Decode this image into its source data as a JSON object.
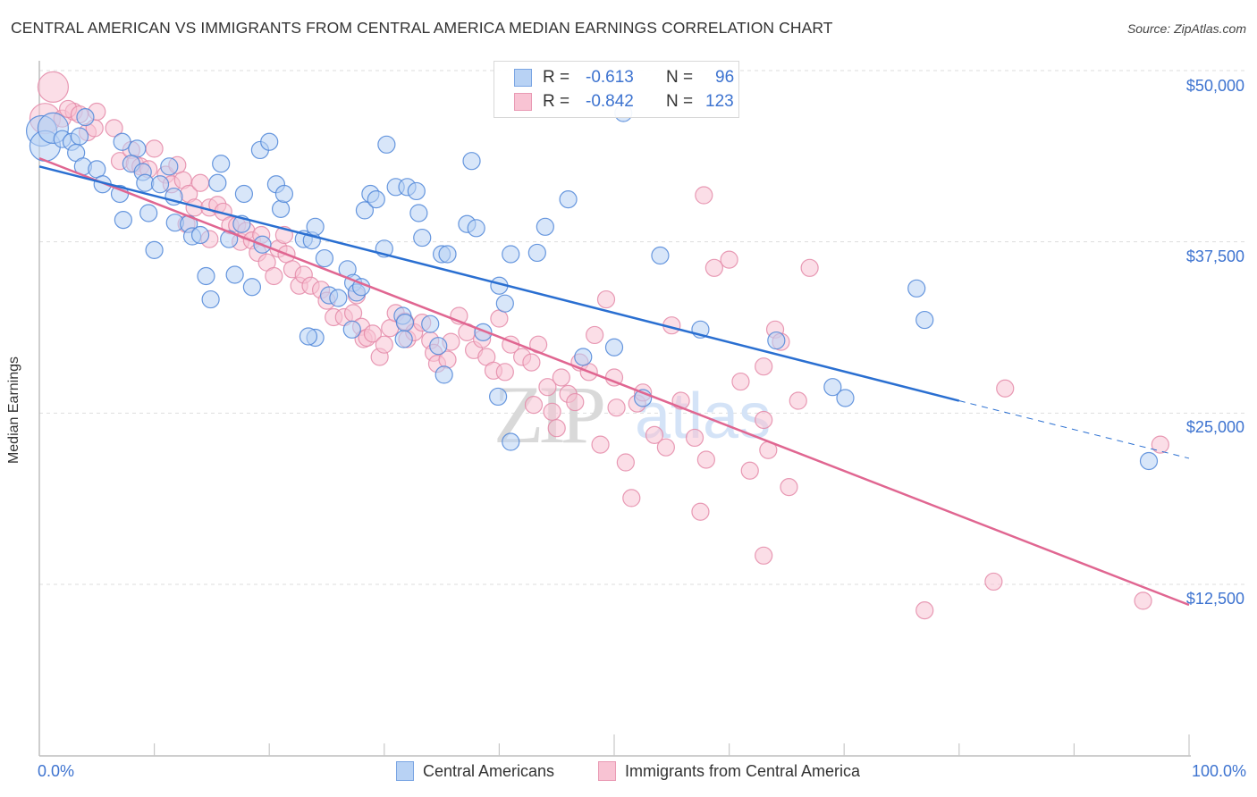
{
  "header": {
    "title": "CENTRAL AMERICAN VS IMMIGRANTS FROM CENTRAL AMERICA MEDIAN EARNINGS CORRELATION CHART",
    "source": "Source: ZipAtlas.com"
  },
  "legend": {
    "rows": [
      {
        "r_label": "R =",
        "r_value": "-0.613",
        "n_label": "N =",
        "n_value": "96"
      },
      {
        "r_label": "R =",
        "r_value": "-0.842",
        "n_label": "N =",
        "n_value": "123"
      }
    ]
  },
  "watermark": {
    "zip": "ZIP",
    "atlas": "atlas"
  },
  "colors": {
    "blue_fill": "#b8d2f4",
    "blue_stroke": "#4f86d8",
    "blue_line": "#2a6fd1",
    "pink_fill": "#f8c3d3",
    "pink_stroke": "#e48aa8",
    "pink_line": "#e06691",
    "tick_text": "#3d73d0"
  },
  "chart_data": {
    "type": "scatter",
    "title": "CENTRAL AMERICAN VS IMMIGRANTS FROM CENTRAL AMERICA MEDIAN EARNINGS CORRELATION CHART",
    "xlabel": "",
    "ylabel": "Median Earnings",
    "xlim": [
      0,
      100
    ],
    "ylim": [
      0,
      52000
    ],
    "x_tick_labels": [
      {
        "value": 0,
        "label": "0.0%"
      },
      {
        "value": 100,
        "label": "100.0%"
      }
    ],
    "y_tick_labels": [
      {
        "value": 50000,
        "label": "$50,000"
      },
      {
        "value": 37500,
        "label": "$37,500"
      },
      {
        "value": 25000,
        "label": "$25,000"
      },
      {
        "value": 12500,
        "label": "$12,500"
      }
    ],
    "grid": "horizontal-dashed",
    "legend_position": "top-center",
    "series": [
      {
        "name": "Central Americans",
        "r": -0.613,
        "n": 96,
        "trend": {
          "x0": 0,
          "y0": 43000,
          "x_solid_end": 80,
          "y_solid_end": 25900,
          "x1": 100,
          "y1": 21700
        },
        "points": [
          [
            0.2,
            45600,
            "l"
          ],
          [
            0.5,
            44500,
            "l"
          ],
          [
            1.2,
            45800,
            "l"
          ],
          [
            2.0,
            45000
          ],
          [
            2.8,
            44800
          ],
          [
            3.5,
            45200
          ],
          [
            4.0,
            46600
          ],
          [
            3.2,
            44000
          ],
          [
            3.8,
            43000
          ],
          [
            5.0,
            42800
          ],
          [
            5.5,
            41700
          ],
          [
            7.2,
            44800
          ],
          [
            8.5,
            44300
          ],
          [
            8.0,
            43200
          ],
          [
            9.0,
            42600
          ],
          [
            7.0,
            41000
          ],
          [
            9.2,
            41800
          ],
          [
            11.3,
            43000
          ],
          [
            10.5,
            41700
          ],
          [
            11.7,
            40800
          ],
          [
            9.5,
            39600
          ],
          [
            7.3,
            39100
          ],
          [
            10.0,
            36900
          ],
          [
            11.8,
            38900
          ],
          [
            13.0,
            38800
          ],
          [
            13.3,
            37900
          ],
          [
            15.5,
            41800
          ],
          [
            15.8,
            43200
          ],
          [
            14.0,
            38000
          ],
          [
            14.5,
            35000
          ],
          [
            14.9,
            33300
          ],
          [
            16.5,
            37700
          ],
          [
            17.0,
            35100
          ],
          [
            17.6,
            38800
          ],
          [
            17.8,
            41000
          ],
          [
            18.5,
            34200
          ],
          [
            19.4,
            37300
          ],
          [
            19.2,
            44200
          ],
          [
            20.0,
            44800
          ],
          [
            20.6,
            41700
          ],
          [
            21.0,
            39900
          ],
          [
            21.3,
            41000
          ],
          [
            23.0,
            37700
          ],
          [
            23.7,
            37600
          ],
          [
            24.0,
            38600
          ],
          [
            24.8,
            36300
          ],
          [
            25.2,
            33600
          ],
          [
            26.0,
            33400
          ],
          [
            26.8,
            35500
          ],
          [
            27.3,
            34500
          ],
          [
            27.6,
            33800
          ],
          [
            28.0,
            34200
          ],
          [
            24.0,
            30500
          ],
          [
            23.4,
            30600
          ],
          [
            27.2,
            31100
          ],
          [
            28.3,
            39800
          ],
          [
            28.8,
            41000
          ],
          [
            29.3,
            40600
          ],
          [
            30.0,
            37000
          ],
          [
            30.2,
            44600
          ],
          [
            31.0,
            41500
          ],
          [
            32.0,
            41500
          ],
          [
            32.8,
            41200
          ],
          [
            33.0,
            39600
          ],
          [
            33.3,
            37800
          ],
          [
            31.6,
            32100
          ],
          [
            31.8,
            31600
          ],
          [
            31.7,
            30400
          ],
          [
            34.0,
            31500
          ],
          [
            35.2,
            27800
          ],
          [
            34.7,
            29900
          ],
          [
            35.0,
            36600
          ],
          [
            35.5,
            36600
          ],
          [
            37.6,
            43400
          ],
          [
            37.2,
            38800
          ],
          [
            38.0,
            38500
          ],
          [
            38.6,
            30900
          ],
          [
            40.0,
            34300
          ],
          [
            39.9,
            26200
          ],
          [
            40.5,
            33000
          ],
          [
            41.0,
            22900
          ],
          [
            41.0,
            36600
          ],
          [
            43.3,
            36700
          ],
          [
            44.0,
            38600
          ],
          [
            46.0,
            40600
          ],
          [
            47.3,
            29100
          ],
          [
            50.0,
            29800
          ],
          [
            52.5,
            26100
          ],
          [
            50.8,
            46900
          ],
          [
            54.0,
            36500
          ],
          [
            57.5,
            31100
          ],
          [
            64.1,
            30300
          ],
          [
            69.0,
            26900
          ],
          [
            70.1,
            26100
          ],
          [
            76.3,
            34100
          ],
          [
            77.0,
            31800
          ],
          [
            96.5,
            21500
          ]
        ]
      },
      {
        "name": "Immigrants from Central America",
        "r": -0.842,
        "n": 123,
        "trend": {
          "x0": 0,
          "y0": 43600,
          "x1": 100,
          "y1": 11000
        },
        "points": [
          [
            0.5,
            46500,
            "l"
          ],
          [
            1.2,
            48800,
            "l"
          ],
          [
            2.0,
            46500
          ],
          [
            3.0,
            47000
          ],
          [
            2.5,
            47200
          ],
          [
            3.5,
            46800
          ],
          [
            4.2,
            45500
          ],
          [
            4.8,
            45800
          ],
          [
            5.0,
            47000
          ],
          [
            6.5,
            45800
          ],
          [
            7.0,
            43400
          ],
          [
            8.0,
            44200
          ],
          [
            8.3,
            43200
          ],
          [
            8.8,
            43000
          ],
          [
            9.5,
            42800
          ],
          [
            10.0,
            44300
          ],
          [
            11.0,
            42400
          ],
          [
            11.5,
            41700
          ],
          [
            12.0,
            43100
          ],
          [
            12.5,
            42000
          ],
          [
            13.0,
            41000
          ],
          [
            13.5,
            40000
          ],
          [
            14.0,
            41800
          ],
          [
            12.8,
            38800
          ],
          [
            14.8,
            37700
          ],
          [
            14.8,
            40000
          ],
          [
            15.5,
            40200
          ],
          [
            16.0,
            39700
          ],
          [
            16.6,
            38700
          ],
          [
            17.2,
            38700
          ],
          [
            17.5,
            37500
          ],
          [
            18.0,
            38300
          ],
          [
            18.5,
            37600
          ],
          [
            19.0,
            36700
          ],
          [
            19.3,
            38000
          ],
          [
            19.8,
            36000
          ],
          [
            20.4,
            35000
          ],
          [
            20.8,
            37000
          ],
          [
            21.3,
            38000
          ],
          [
            21.5,
            36600
          ],
          [
            22.0,
            35500
          ],
          [
            22.6,
            34300
          ],
          [
            23.0,
            35100
          ],
          [
            23.6,
            34300
          ],
          [
            24.5,
            34000
          ],
          [
            25.0,
            33200
          ],
          [
            25.6,
            32000
          ],
          [
            26.5,
            32000
          ],
          [
            27.3,
            32300
          ],
          [
            27.6,
            33600
          ],
          [
            28.0,
            31300
          ],
          [
            28.2,
            30400
          ],
          [
            28.5,
            30500
          ],
          [
            29.0,
            30800
          ],
          [
            29.6,
            29100
          ],
          [
            30.0,
            30000
          ],
          [
            30.5,
            31200
          ],
          [
            31.0,
            32300
          ],
          [
            31.8,
            31700
          ],
          [
            32.0,
            30400
          ],
          [
            32.6,
            30900
          ],
          [
            33.3,
            31600
          ],
          [
            34.0,
            30300
          ],
          [
            34.3,
            29400
          ],
          [
            34.6,
            28600
          ],
          [
            35.5,
            28900
          ],
          [
            35.8,
            30200
          ],
          [
            36.5,
            32100
          ],
          [
            37.2,
            30900
          ],
          [
            37.8,
            29600
          ],
          [
            38.5,
            30400
          ],
          [
            38.9,
            29100
          ],
          [
            39.5,
            28100
          ],
          [
            40.0,
            31900
          ],
          [
            40.5,
            28000
          ],
          [
            41.0,
            30000
          ],
          [
            42.0,
            29100
          ],
          [
            42.8,
            28700
          ],
          [
            43.0,
            25600
          ],
          [
            43.4,
            30000
          ],
          [
            44.2,
            26900
          ],
          [
            44.6,
            25100
          ],
          [
            45.0,
            23900
          ],
          [
            45.4,
            27600
          ],
          [
            46.0,
            26400
          ],
          [
            46.6,
            25800
          ],
          [
            47.0,
            28700
          ],
          [
            47.8,
            28000
          ],
          [
            48.3,
            30700
          ],
          [
            48.8,
            22700
          ],
          [
            49.3,
            33300
          ],
          [
            50.0,
            27600
          ],
          [
            50.2,
            25400
          ],
          [
            51.0,
            21400
          ],
          [
            51.5,
            18800
          ],
          [
            52.0,
            25700
          ],
          [
            52.5,
            26500
          ],
          [
            53.5,
            23400
          ],
          [
            54.5,
            22500
          ],
          [
            55.0,
            31400
          ],
          [
            55.8,
            25900
          ],
          [
            57.0,
            23200
          ],
          [
            57.5,
            17800
          ],
          [
            58.0,
            21600
          ],
          [
            57.8,
            40900
          ],
          [
            58.7,
            35600
          ],
          [
            60.0,
            36200
          ],
          [
            61.0,
            27300
          ],
          [
            61.8,
            20800
          ],
          [
            63.0,
            28400
          ],
          [
            63.4,
            22300
          ],
          [
            63.0,
            14600
          ],
          [
            64.0,
            31100
          ],
          [
            64.5,
            30200
          ],
          [
            65.2,
            19600
          ],
          [
            66.0,
            25900
          ],
          [
            67.0,
            35600
          ],
          [
            63.0,
            24500
          ],
          [
            77.0,
            10600
          ],
          [
            83.0,
            12700
          ],
          [
            84.0,
            26800
          ],
          [
            96.0,
            11300
          ],
          [
            97.5,
            22700
          ]
        ]
      }
    ]
  }
}
